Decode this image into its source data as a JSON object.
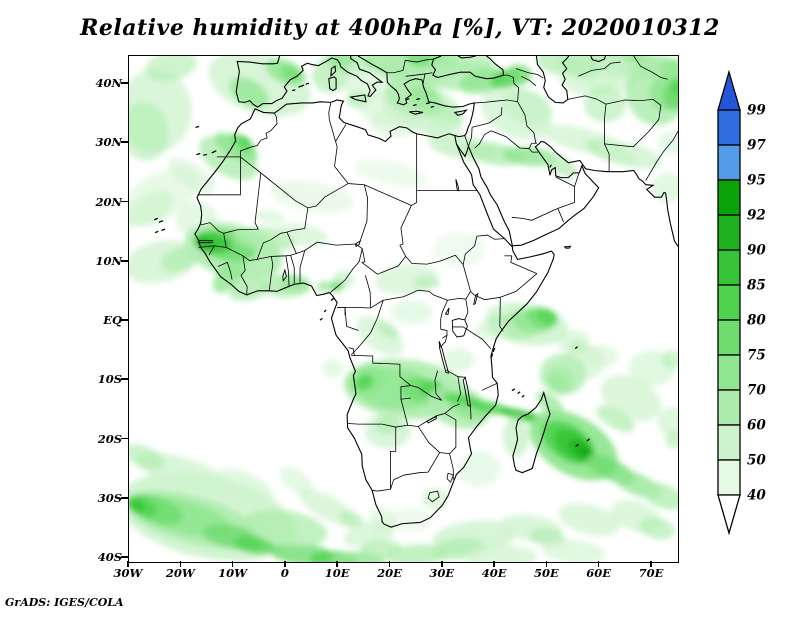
{
  "title": "Relative humidity at 400hPa [%], VT: 2020010312",
  "credit": "GrADS: IGES/COLA",
  "axes": {
    "lat_ticks": [
      "40N",
      "30N",
      "20N",
      "10N",
      "EQ",
      "10S",
      "20S",
      "30S",
      "40S"
    ],
    "lon_ticks": [
      "30W",
      "20W",
      "10W",
      "0",
      "10E",
      "20E",
      "30E",
      "40E",
      "50E",
      "60E",
      "70E"
    ]
  },
  "colorbar": {
    "labels_top_to_bottom": [
      "99",
      "97",
      "95",
      "92",
      "90",
      "85",
      "80",
      "75",
      "70",
      "60",
      "50",
      "40"
    ],
    "box_colors": [
      "#2e6ce2",
      "#539ae8",
      "#0aa30a",
      "#1eb21e",
      "#35c435",
      "#4fd34f",
      "#6fdc6f",
      "#90e690",
      "#aeecae",
      "#cdf3cd",
      "#e6f9e4"
    ],
    "arrow_top_color": "#2356d8",
    "arrow_bottom_color": "#ffffff"
  },
  "chart_data": {
    "type": "heatmap",
    "title": "Relative humidity at 400hPa [%], VT: 2020010312",
    "variable": "Relative humidity",
    "pressure_level": "400hPa",
    "units": "%",
    "valid_time_label": "VT: 2020010312",
    "projection": "latlon (Africa / surrounding oceans)",
    "lon_range": [
      -30,
      75
    ],
    "lat_range": [
      -40.7,
      44.7
    ],
    "x_ticks": [
      "30W",
      "20W",
      "10W",
      "0",
      "10E",
      "20E",
      "30E",
      "40E",
      "50E",
      "60E",
      "70E"
    ],
    "y_ticks": [
      "40N",
      "30N",
      "20N",
      "10N",
      "EQ",
      "10S",
      "20S",
      "30S",
      "40S"
    ],
    "shading_levels": [
      40,
      50,
      60,
      70,
      75,
      80,
      85,
      90,
      92,
      95,
      97,
      99
    ],
    "colorbar_labels_top_to_bottom": [
      "99",
      "97",
      "95",
      "92",
      "90",
      "85",
      "80",
      "75",
      "70",
      "60",
      "50",
      "40"
    ],
    "legend_position": "right-vertical-colorbar",
    "grid": "off",
    "background_below_40_percent": "white",
    "notable_features": [
      {
        "region": "Senegal / Gambia / Guinea (West Africa)",
        "approx_lon": -14,
        "approx_lat": 13,
        "max_value": "85-92"
      },
      {
        "region": "Southern Morocco / Western Sahara streak",
        "approx_lon": -8,
        "approx_lat": 30,
        "max_value": "80-85"
      },
      {
        "region": "Iberia / western Mediterranean band",
        "max_value": "70-80"
      },
      {
        "region": "Balkans / Turkey / Caucasus band",
        "max_value": "75-85"
      },
      {
        "region": "NE corner: Afghanistan / Central Asia",
        "approx_lon": 73,
        "approx_lat": 39,
        "max_value": "80-90"
      },
      {
        "region": "Arc across northern Arabia / Persian Gulf",
        "max_value": "70-75"
      },
      {
        "region": "Angola / Zambia / Malawi / Mozambique",
        "max_value": "80-85"
      },
      {
        "region": "Narrow streak Zambia through northern Madagascar",
        "max_value": "85-92"
      },
      {
        "region": "SW Indian Ocean east of Madagascar",
        "approx_lon": 56,
        "approx_lat": -21,
        "max_value": "92-95"
      },
      {
        "region": "South Atlantic band 30W-20E near 30S-40S",
        "max_value": "85-90"
      },
      {
        "region": "Equatorial Indian Ocean near 50E",
        "max_value": "80-85"
      },
      {
        "region": "Sahara / Egypt / Sudan / Horn of Africa deserts",
        "value": "below 40 (white)"
      }
    ]
  }
}
